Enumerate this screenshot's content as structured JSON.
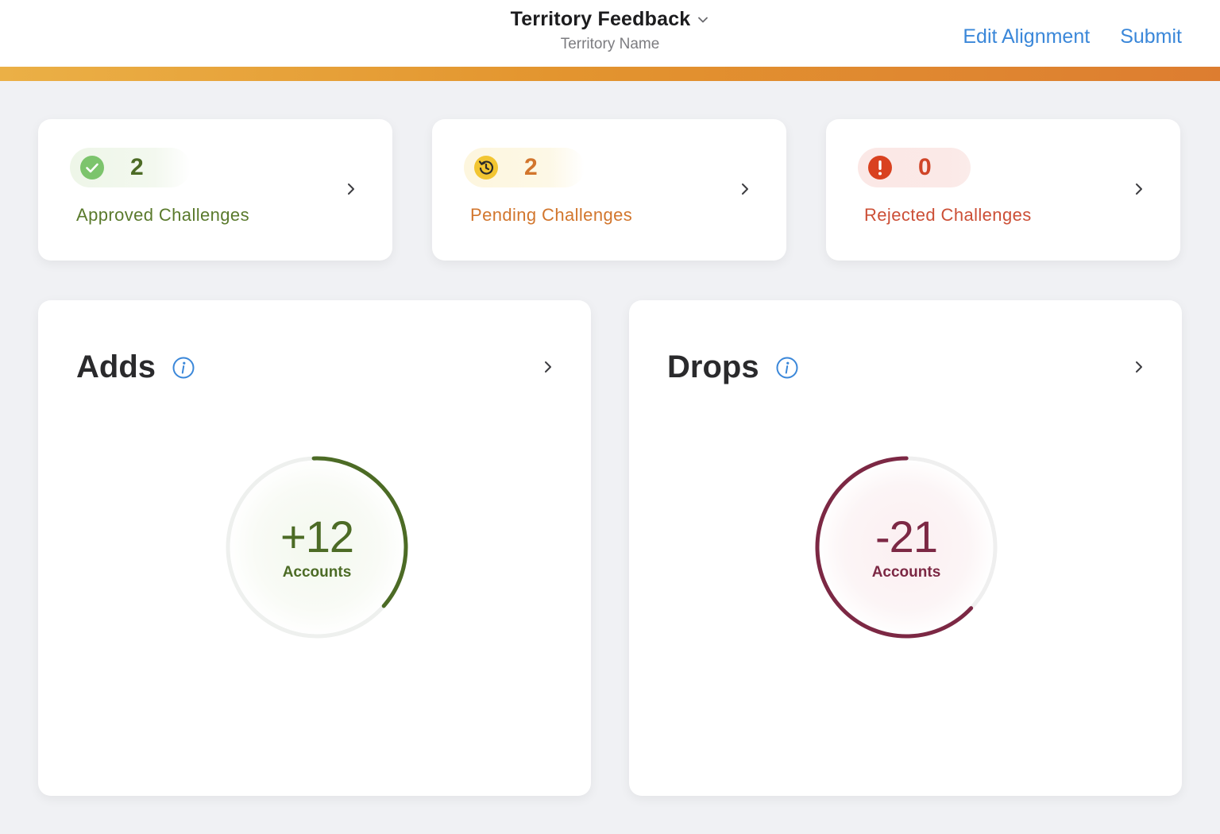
{
  "header": {
    "title": "Territory Feedback",
    "subtitle": "Territory Name",
    "actions": {
      "edit_alignment": "Edit Alignment",
      "submit": "Submit"
    },
    "link_color": "#3a87d9",
    "accent_gradient": [
      "#ebb046",
      "#dd7d30"
    ]
  },
  "challenges": {
    "approved": {
      "count": "2",
      "label": "Approved Challenges",
      "icon": "check-circle-icon",
      "color": "#5a7a2c"
    },
    "pending": {
      "count": "2",
      "label": "Pending Challenges",
      "icon": "history-icon",
      "color": "#d2762d"
    },
    "rejected": {
      "count": "0",
      "label": "Rejected Challenges",
      "icon": "exclamation-circle-icon",
      "color": "#d04528"
    }
  },
  "adds": {
    "title": "Adds",
    "value": "+12",
    "unit": "Accounts",
    "progress": 0.37,
    "color": "#4c6b25"
  },
  "drops": {
    "title": "Drops",
    "value": "-21",
    "unit": "Accounts",
    "progress": 0.63,
    "color": "#7c2844"
  }
}
